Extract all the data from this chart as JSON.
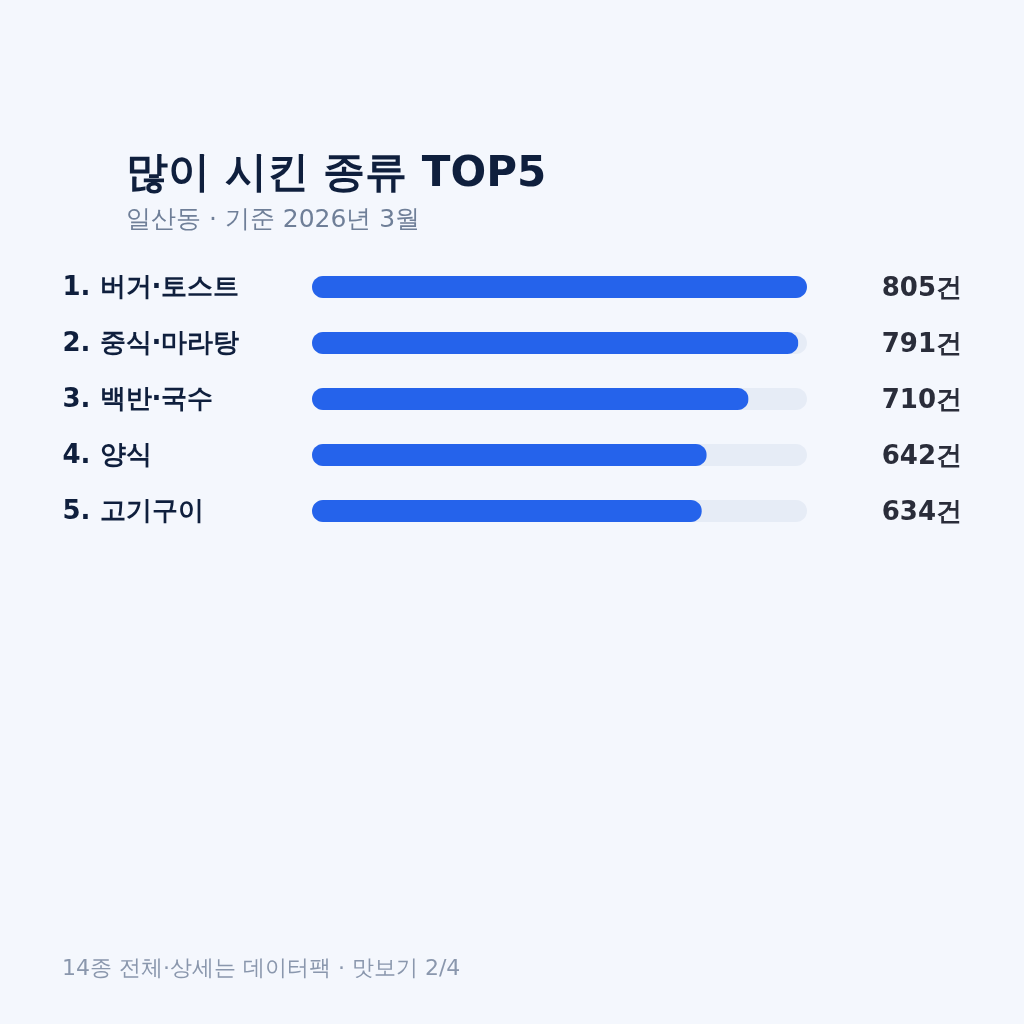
{
  "chart_data": {
    "type": "bar",
    "orientation": "horizontal",
    "title": "많이 시킨 종류 TOP5",
    "subtitle": "일산동 · 기준 2026년 3월",
    "categories": [
      "1. 버거·토스트",
      "2. 중식·마라탕",
      "3. 백반·국수",
      "4. 양식",
      "5. 고기구이"
    ],
    "values": [
      805,
      791,
      710,
      642,
      634
    ],
    "value_labels": [
      "805건",
      "791건",
      "710건",
      "642건",
      "634건"
    ],
    "color": "#2563eb",
    "xlim": [
      0,
      805
    ],
    "tick_labels": "y",
    "annotations": [
      "14종 전체·상세는 데이터팩 · 맛보기 2/4"
    ]
  }
}
